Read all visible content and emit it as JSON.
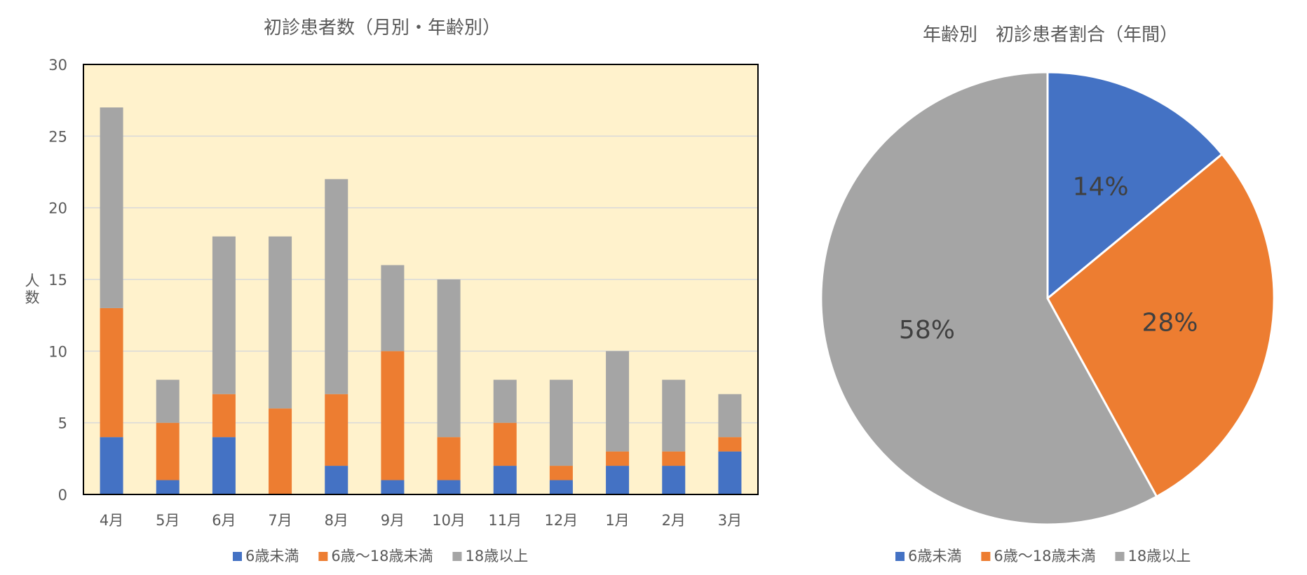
{
  "chart_data": [
    {
      "type": "bar",
      "stacked": true,
      "title": "初診患者数（月別・年齢別）",
      "ylabel": "人数",
      "xlabel": "",
      "ylim": [
        0,
        30
      ],
      "yticks": [
        0,
        5,
        10,
        15,
        20,
        25,
        30
      ],
      "grid": true,
      "legend": "bottom",
      "plot_background": "#FFF2CC",
      "categories": [
        "4月",
        "5月",
        "6月",
        "7月",
        "8月",
        "9月",
        "10月",
        "11月",
        "12月",
        "1月",
        "2月",
        "3月"
      ],
      "series": [
        {
          "name": "6歳未満",
          "color": "#4472C4",
          "values": [
            4,
            1,
            4,
            0,
            2,
            1,
            1,
            2,
            1,
            2,
            2,
            3
          ]
        },
        {
          "name": "6歳～18歳未満",
          "color": "#ED7D31",
          "values": [
            9,
            4,
            3,
            6,
            5,
            9,
            3,
            3,
            1,
            1,
            1,
            1
          ]
        },
        {
          "name": "18歳以上",
          "color": "#A5A5A5",
          "values": [
            14,
            3,
            11,
            12,
            15,
            6,
            11,
            3,
            6,
            7,
            5,
            3
          ]
        }
      ]
    },
    {
      "type": "pie",
      "title": "年齢別　初診患者割合（年間）",
      "legend": "bottom",
      "slices": [
        {
          "name": "6歳未満",
          "color": "#4472C4",
          "value": 14,
          "label": "14%"
        },
        {
          "name": "6歳～18歳未満",
          "color": "#ED7D31",
          "value": 28,
          "label": "28%"
        },
        {
          "name": "18歳以上",
          "color": "#A5A5A5",
          "value": 58,
          "label": "58%"
        }
      ]
    }
  ]
}
